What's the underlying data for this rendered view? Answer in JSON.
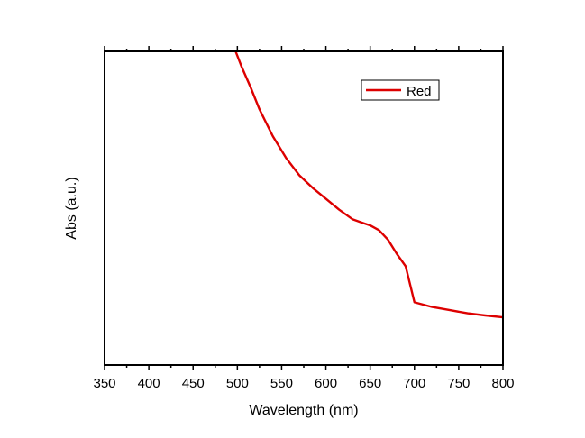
{
  "chart_data": {
    "type": "line",
    "xlabel": "Wavelength (nm)",
    "ylabel": "Abs (a.u.)",
    "xlim": [
      350,
      800
    ],
    "ylim": [
      0,
      1
    ],
    "x_ticks": [
      350,
      400,
      450,
      500,
      550,
      600,
      650,
      700,
      750,
      800
    ],
    "y_tick_labels": false,
    "legend": {
      "position": "top-right"
    },
    "grid": false,
    "series": [
      {
        "name": "Red",
        "color": "#dd0000",
        "x": [
          498,
          505,
          515,
          525,
          540,
          555,
          570,
          585,
          600,
          615,
          630,
          640,
          650,
          660,
          670,
          680,
          690,
          700,
          720,
          740,
          760,
          780,
          800
        ],
        "y": [
          1.0,
          0.95,
          0.885,
          0.815,
          0.73,
          0.66,
          0.605,
          0.565,
          0.53,
          0.495,
          0.465,
          0.455,
          0.445,
          0.43,
          0.4,
          0.355,
          0.315,
          0.2,
          0.185,
          0.175,
          0.165,
          0.158,
          0.152
        ]
      }
    ]
  }
}
